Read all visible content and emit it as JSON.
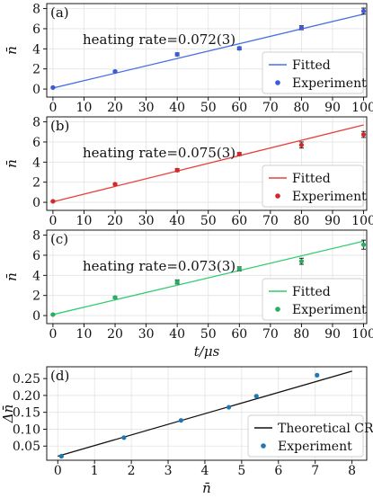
{
  "chart_data": [
    {
      "panel_label": "(a)",
      "type": "scatter",
      "ylabel": "n̄",
      "xlabel": "",
      "xlim": [
        -2,
        101
      ],
      "ylim": [
        -0.8,
        8.5
      ],
      "xticks": [
        0,
        10,
        20,
        30,
        40,
        50,
        60,
        70,
        80,
        90,
        100
      ],
      "yticks": [
        0,
        2,
        4,
        6,
        8
      ],
      "annotation": "heating rate=0.072(3)",
      "legend_position": "lower-right",
      "grid": true,
      "fit_line": {
        "name": "Fitted",
        "color": "#4a6fe3",
        "x": [
          0,
          100
        ],
        "y": [
          0.1,
          7.45
        ]
      },
      "series": [
        {
          "name": "Experiment",
          "color": "#3b5bdb",
          "errbar_color": "#222222",
          "x": [
            0,
            20,
            40,
            60,
            80,
            100
          ],
          "y": [
            0.15,
            1.75,
            3.45,
            4.05,
            6.1,
            7.75
          ],
          "err": [
            0.05,
            0.08,
            0.15,
            0.15,
            0.2,
            0.3
          ]
        }
      ]
    },
    {
      "panel_label": "(b)",
      "type": "scatter",
      "ylabel": "n̄",
      "xlabel": "",
      "xlim": [
        -2,
        101
      ],
      "ylim": [
        -0.8,
        8.5
      ],
      "xticks": [
        0,
        10,
        20,
        30,
        40,
        50,
        60,
        70,
        80,
        90,
        100
      ],
      "yticks": [
        0,
        2,
        4,
        6,
        8
      ],
      "annotation": "heating rate=0.075(3)",
      "legend_position": "lower-right",
      "grid": true,
      "fit_line": {
        "name": "Fitted",
        "color": "#e8403a",
        "x": [
          0,
          100
        ],
        "y": [
          0.05,
          7.7
        ]
      },
      "series": [
        {
          "name": "Experiment",
          "color": "#d62728",
          "errbar_color": "#222222",
          "x": [
            0,
            20,
            40,
            60,
            80,
            100
          ],
          "y": [
            0.1,
            1.8,
            3.2,
            4.8,
            5.7,
            6.75
          ],
          "err": [
            0.05,
            0.08,
            0.15,
            0.15,
            0.3,
            0.3
          ]
        }
      ]
    },
    {
      "panel_label": "(c)",
      "type": "scatter",
      "ylabel": "n̄",
      "xlabel": "t/μs",
      "xlim": [
        -2,
        101
      ],
      "ylim": [
        -0.8,
        8.5
      ],
      "xticks": [
        0,
        10,
        20,
        30,
        40,
        50,
        60,
        70,
        80,
        90,
        100
      ],
      "yticks": [
        0,
        2,
        4,
        6,
        8
      ],
      "annotation": "heating rate=0.073(3)",
      "legend_position": "lower-right",
      "grid": true,
      "fit_line": {
        "name": "Fitted",
        "color": "#2ecc71",
        "x": [
          0,
          100
        ],
        "y": [
          0.1,
          7.4
        ]
      },
      "series": [
        {
          "name": "Experiment",
          "color": "#27ae60",
          "errbar_color": "#222222",
          "x": [
            0,
            20,
            40,
            60,
            80,
            100
          ],
          "y": [
            0.1,
            1.8,
            3.35,
            4.65,
            5.4,
            7.05
          ],
          "err": [
            0.05,
            0.1,
            0.2,
            0.2,
            0.3,
            0.45
          ]
        }
      ]
    },
    {
      "panel_label": "(d)",
      "type": "scatter",
      "ylabel": "Δn̄",
      "xlabel": "n̄",
      "xlim": [
        -0.3,
        8.4
      ],
      "ylim": [
        0.008,
        0.285
      ],
      "xticks": [
        0,
        1,
        2,
        3,
        4,
        5,
        6,
        7,
        8
      ],
      "yticks": [
        0.05,
        0.1,
        0.15,
        0.2,
        0.25
      ],
      "ytick_labels": [
        "0.05",
        "0.10",
        "0.15",
        "0.20",
        "0.25"
      ],
      "legend_position": "lower-right",
      "grid": true,
      "fit_line": {
        "name": "Theoretical CRB",
        "color": "#111111",
        "x": [
          0,
          8
        ],
        "y": [
          0.02,
          0.272
        ]
      },
      "series": [
        {
          "name": "Experiment",
          "color": "#1f77b4",
          "x": [
            0.1,
            1.8,
            3.35,
            4.65,
            5.4,
            7.05
          ],
          "y": [
            0.02,
            0.075,
            0.126,
            0.165,
            0.198,
            0.26
          ]
        }
      ]
    }
  ]
}
